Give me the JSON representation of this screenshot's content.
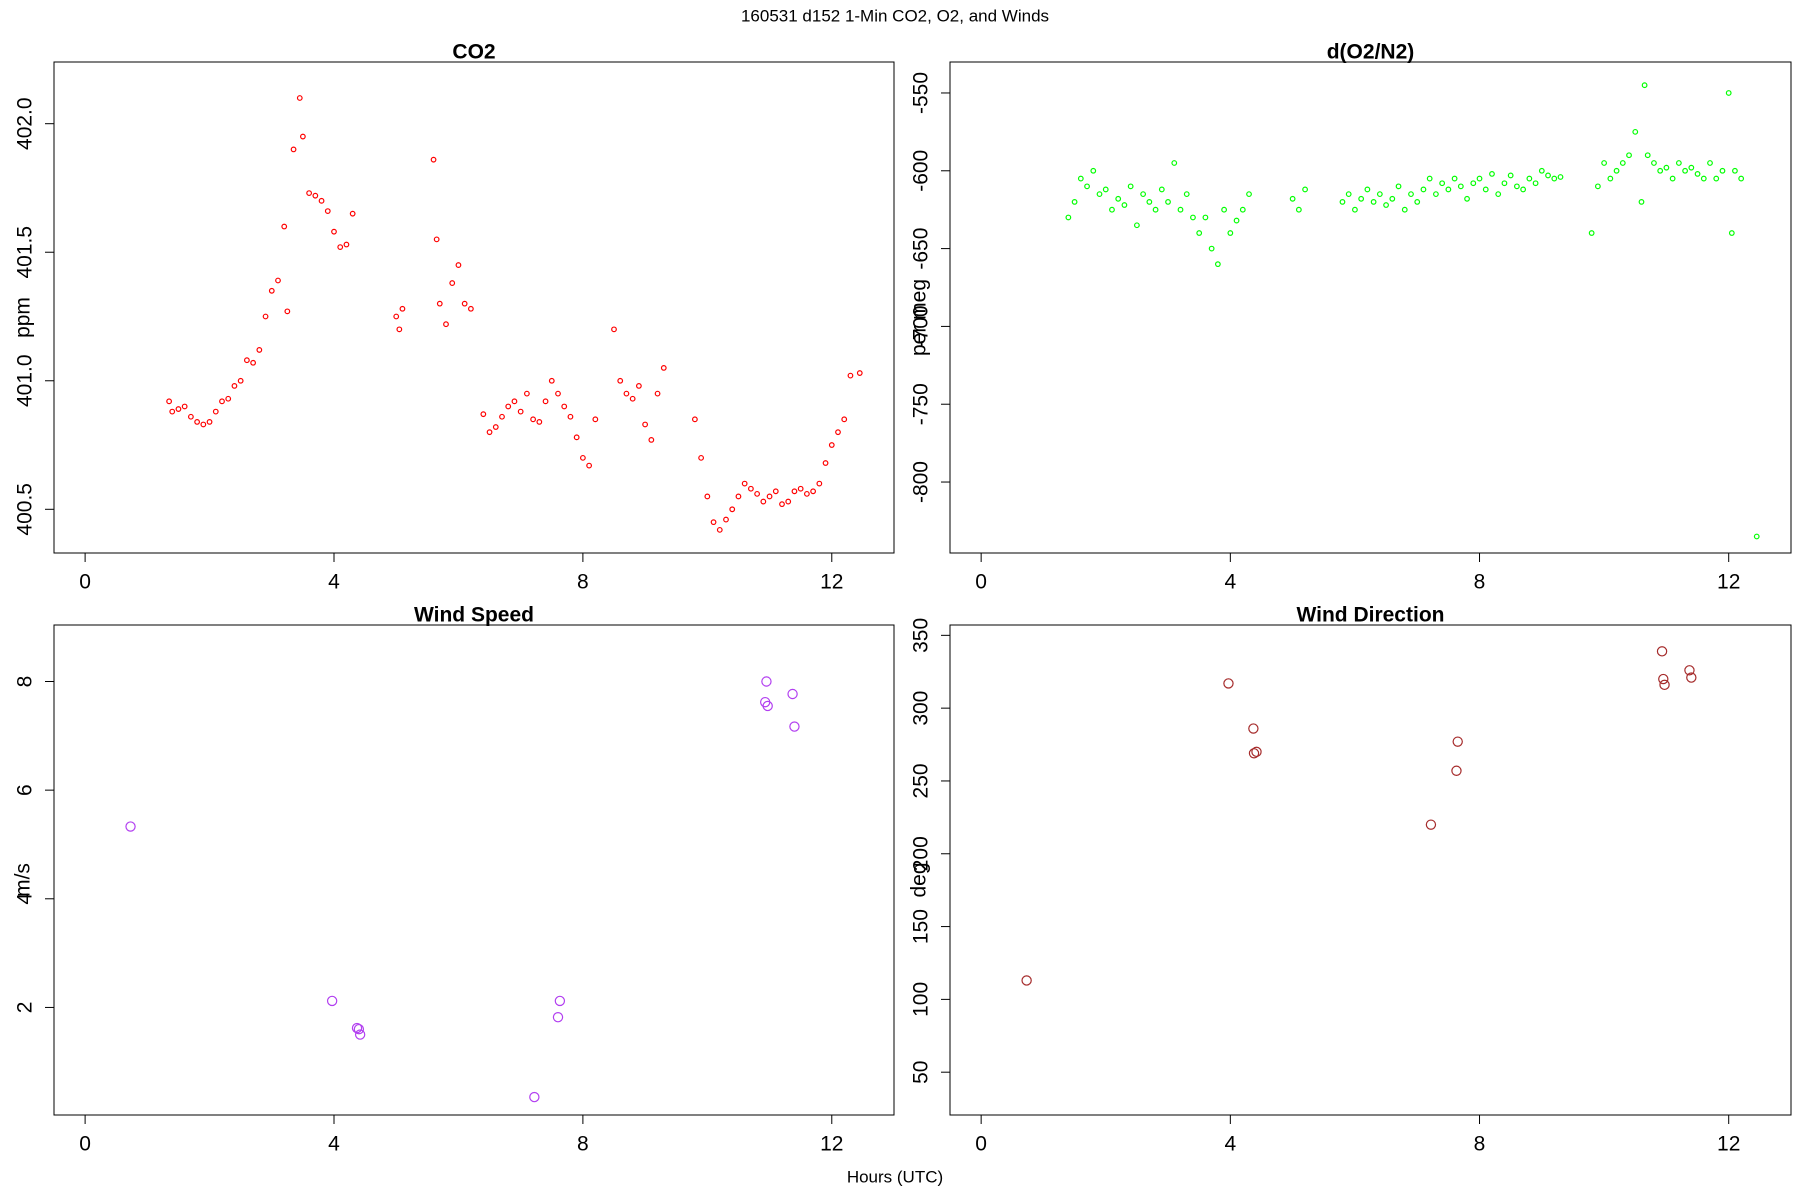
{
  "title": "160531   d152   1-Min CO2, O2, and Winds",
  "xlabel": "Hours (UTC)",
  "chart_data": [
    {
      "type": "scatter",
      "title": "CO2",
      "ylabel": "ppm",
      "color": "#ff0000",
      "marker_size": 2.3,
      "xlim": [
        -0.5,
        13
      ],
      "xticks": [
        0,
        4,
        8,
        12
      ],
      "ylim": [
        400.33,
        402.24
      ],
      "yticks": [
        {
          "value": 402,
          "label": "402.0"
        },
        401.5,
        {
          "value": 401,
          "label": "401.0"
        },
        400.5
      ],
      "x": [
        1.35,
        1.4,
        1.5,
        1.6,
        1.7,
        1.8,
        1.9,
        2.0,
        2.1,
        2.2,
        2.3,
        2.4,
        2.5,
        2.6,
        2.7,
        2.8,
        2.9,
        3.0,
        3.1,
        3.2,
        3.25,
        3.35,
        3.45,
        3.5,
        3.6,
        3.7,
        3.8,
        3.9,
        4.0,
        4.1,
        4.2,
        4.3,
        5.0,
        5.05,
        5.1,
        5.6,
        5.65,
        5.7,
        5.8,
        5.9,
        6.0,
        6.1,
        6.2,
        6.4,
        6.5,
        6.6,
        6.7,
        6.8,
        6.9,
        7.0,
        7.1,
        7.2,
        7.3,
        7.4,
        7.5,
        7.6,
        7.7,
        7.8,
        7.9,
        8.0,
        8.1,
        8.2,
        8.5,
        8.6,
        8.7,
        8.8,
        8.9,
        9.0,
        9.1,
        9.2,
        9.3,
        9.8,
        9.9,
        10.0,
        10.1,
        10.2,
        10.3,
        10.4,
        10.5,
        10.6,
        10.7,
        10.8,
        10.9,
        11.0,
        11.1,
        11.2,
        11.3,
        11.4,
        11.5,
        11.6,
        11.7,
        11.8,
        11.9,
        12.0,
        12.1,
        12.2,
        12.3,
        12.45
      ],
      "values": [
        400.92,
        400.88,
        400.89,
        400.9,
        400.86,
        400.84,
        400.83,
        400.84,
        400.88,
        400.92,
        400.93,
        400.98,
        401.0,
        401.08,
        401.07,
        401.12,
        401.25,
        401.35,
        401.39,
        401.6,
        401.27,
        401.9,
        402.1,
        401.95,
        401.73,
        401.72,
        401.7,
        401.66,
        401.58,
        401.52,
        401.53,
        401.65,
        401.25,
        401.2,
        401.28,
        401.86,
        401.55,
        401.3,
        401.22,
        401.38,
        401.45,
        401.3,
        401.28,
        400.87,
        400.8,
        400.82,
        400.86,
        400.9,
        400.92,
        400.88,
        400.95,
        400.85,
        400.84,
        400.92,
        401.0,
        400.95,
        400.9,
        400.86,
        400.78,
        400.7,
        400.67,
        400.85,
        401.2,
        401.0,
        400.95,
        400.93,
        400.98,
        400.83,
        400.77,
        400.95,
        401.05,
        400.85,
        400.7,
        400.55,
        400.45,
        400.42,
        400.46,
        400.5,
        400.55,
        400.6,
        400.58,
        400.56,
        400.53,
        400.55,
        400.57,
        400.52,
        400.53,
        400.57,
        400.58,
        400.56,
        400.57,
        400.6,
        400.68,
        400.75,
        400.8,
        400.85,
        401.02,
        401.03
      ]
    },
    {
      "type": "scatter",
      "title": "d(O2/N2)",
      "ylabel": "per meg",
      "color": "#00ff00",
      "marker_size": 2.3,
      "xlim": [
        -0.5,
        13
      ],
      "xticks": [
        0,
        4,
        8,
        12
      ],
      "ylim": [
        -845.6,
        -530.1
      ],
      "yticks": [
        -550,
        -600,
        -650,
        -700,
        -750,
        -800
      ],
      "x": [
        1.4,
        1.5,
        1.6,
        1.7,
        1.8,
        1.9,
        2.0,
        2.1,
        2.2,
        2.3,
        2.4,
        2.5,
        2.6,
        2.7,
        2.8,
        2.9,
        3.0,
        3.1,
        3.2,
        3.3,
        3.4,
        3.5,
        3.6,
        3.7,
        3.8,
        3.9,
        4.0,
        4.1,
        4.2,
        4.3,
        5.0,
        5.1,
        5.2,
        5.8,
        5.9,
        6.0,
        6.1,
        6.2,
        6.3,
        6.4,
        6.5,
        6.6,
        6.7,
        6.8,
        6.9,
        7.0,
        7.1,
        7.2,
        7.3,
        7.4,
        7.5,
        7.6,
        7.7,
        7.8,
        7.9,
        8.0,
        8.1,
        8.2,
        8.3,
        8.4,
        8.5,
        8.6,
        8.7,
        8.8,
        8.9,
        9.0,
        9.1,
        9.2,
        9.3,
        9.8,
        9.9,
        10.0,
        10.1,
        10.2,
        10.3,
        10.4,
        10.5,
        10.6,
        10.65,
        10.7,
        10.8,
        10.9,
        11.0,
        11.1,
        11.2,
        11.3,
        11.4,
        11.5,
        11.6,
        11.7,
        11.8,
        11.9,
        12.0,
        12.05,
        12.1,
        12.2,
        12.45
      ],
      "values": [
        -630,
        -620,
        -605,
        -610,
        -600,
        -615,
        -612,
        -625,
        -618,
        -622,
        -610,
        -635,
        -615,
        -620,
        -625,
        -612,
        -620,
        -595,
        -625,
        -615,
        -630,
        -640,
        -630,
        -650,
        -660,
        -625,
        -640,
        -632,
        -625,
        -615,
        -618,
        -625,
        -612,
        -620,
        -615,
        -625,
        -618,
        -612,
        -620,
        -615,
        -622,
        -618,
        -610,
        -625,
        -615,
        -620,
        -612,
        -605,
        -615,
        -608,
        -612,
        -605,
        -610,
        -618,
        -608,
        -605,
        -612,
        -602,
        -615,
        -608,
        -603,
        -610,
        -612,
        -605,
        -608,
        -600,
        -603,
        -605,
        -604,
        -640,
        -610,
        -595,
        -605,
        -600,
        -595,
        -590,
        -575,
        -620,
        -545,
        -590,
        -595,
        -600,
        -598,
        -605,
        -595,
        -600,
        -598,
        -602,
        -605,
        -595,
        -605,
        -600,
        -550,
        -640,
        -600,
        -605,
        -835
      ]
    },
    {
      "type": "scatter",
      "title": "Wind Speed",
      "ylabel": "m/s",
      "color": "#b23ff0",
      "marker_size": 4.6,
      "xlim": [
        -0.5,
        13
      ],
      "xticks": [
        0,
        4,
        8,
        12
      ],
      "ylim": [
        0.02,
        9.04
      ],
      "yticks": [
        2,
        4,
        6,
        8
      ],
      "x": [
        0.73,
        3.97,
        4.37,
        4.4,
        4.42,
        7.22,
        7.63,
        7.6,
        10.95,
        10.93,
        10.97,
        11.37,
        11.4
      ],
      "values": [
        5.33,
        2.12,
        1.62,
        1.6,
        1.5,
        0.35,
        2.12,
        1.82,
        8.0,
        7.62,
        7.55,
        7.77,
        7.17
      ]
    },
    {
      "type": "scatter",
      "title": "Wind Direction",
      "ylabel": "deg",
      "color": "#a52a2a",
      "marker_size": 4.6,
      "xlim": [
        -0.5,
        13
      ],
      "xticks": [
        0,
        4,
        8,
        12
      ],
      "ylim": [
        20.6,
        357.1
      ],
      "yticks": [
        50,
        100,
        150,
        200,
        250,
        300,
        350
      ],
      "x": [
        0.73,
        3.97,
        4.37,
        4.38,
        4.42,
        7.22,
        7.63,
        7.65,
        10.93,
        10.95,
        10.97,
        11.37,
        11.4
      ],
      "values": [
        113,
        317,
        286,
        269,
        270,
        220,
        257,
        277,
        339,
        320,
        316,
        326,
        321
      ]
    }
  ]
}
